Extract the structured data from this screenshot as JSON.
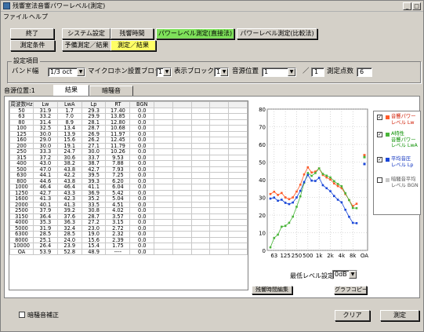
{
  "window": {
    "title": "残響室法音響パワーレベル(測定)",
    "controls": [
      "_",
      "□"
    ]
  },
  "menu": [
    "ファイル",
    "ヘルプ"
  ],
  "toolbar": {
    "row1": [
      "終了",
      "システム設定",
      "残響時間",
      "パワーレベル測定(直接法)",
      "パワーレベル測定(比較法)"
    ],
    "row2": [
      "測定条件",
      "予備測定／結果",
      "測定／結果"
    ]
  },
  "settings": {
    "group_label": "設定項目",
    "band_label": "バンド幅",
    "band_value": "1/3 oct",
    "mic_block_label": "マイクロホン設置ブロック",
    "mic_block_value": "1",
    "display_block_label": "表示ブロック",
    "display_block_value": "1",
    "sound_pos_label": "音源位置",
    "sound_pos_value": "1",
    "sound_pos_total": "1",
    "points_label": "測定点数",
    "points_value": "6"
  },
  "position_label": "音源位置:1",
  "tabs": [
    "結果",
    "暗騒音"
  ],
  "table": {
    "columns": [
      "周波数Hz",
      "Lw",
      "LwA",
      "Lp",
      "RT",
      "BGN"
    ],
    "rows": [
      [
        "50",
        "31.9",
        "1.7",
        "29.3",
        "17.40",
        "0.0"
      ],
      [
        "63",
        "33.2",
        "7.0",
        "29.9",
        "13.85",
        "0.0"
      ],
      [
        "80",
        "31.4",
        "8.9",
        "28.1",
        "12.80",
        "0.0"
      ],
      [
        "100",
        "32.5",
        "13.4",
        "28.7",
        "10.68",
        "0.0"
      ],
      [
        "125",
        "30.0",
        "13.9",
        "26.9",
        "11.97",
        "0.0"
      ],
      [
        "160",
        "29.0",
        "15.6",
        "26.2",
        "12.45",
        "0.0"
      ],
      [
        "200",
        "30.0",
        "19.1",
        "27.1",
        "11.79",
        "0.0"
      ],
      [
        "250",
        "33.3",
        "24.7",
        "30.0",
        "10.26",
        "0.0"
      ],
      [
        "315",
        "37.2",
        "30.6",
        "33.7",
        "9.53",
        "0.0"
      ],
      [
        "400",
        "43.0",
        "38.2",
        "38.7",
        "7.88",
        "0.0"
      ],
      [
        "500",
        "47.0",
        "43.8",
        "42.7",
        "7.93",
        "0.0"
      ],
      [
        "630",
        "44.1",
        "42.2",
        "39.5",
        "7.25",
        "0.0"
      ],
      [
        "800",
        "44.6",
        "43.8",
        "39.3",
        "6.20",
        "0.0"
      ],
      [
        "1000",
        "46.4",
        "46.4",
        "41.1",
        "6.04",
        "0.0"
      ],
      [
        "1250",
        "42.7",
        "43.3",
        "36.9",
        "5.42",
        "0.0"
      ],
      [
        "1600",
        "41.3",
        "42.3",
        "35.2",
        "5.04",
        "0.0"
      ],
      [
        "2000",
        "40.1",
        "41.3",
        "33.5",
        "4.51",
        "0.0"
      ],
      [
        "2500",
        "37.9",
        "39.2",
        "30.8",
        "4.02",
        "0.0"
      ],
      [
        "3150",
        "36.4",
        "37.6",
        "28.7",
        "3.57",
        "0.0"
      ],
      [
        "4000",
        "35.3",
        "36.3",
        "27.2",
        "3.15",
        "0.0"
      ],
      [
        "5000",
        "31.9",
        "32.4",
        "23.0",
        "2.72",
        "0.0"
      ],
      [
        "6300",
        "28.5",
        "28.5",
        "19.0",
        "2.32",
        "0.0"
      ],
      [
        "8000",
        "25.1",
        "24.0",
        "15.6",
        "2.39",
        "0.0"
      ],
      [
        "10000",
        "26.4",
        "23.9",
        "15.4",
        "1.75",
        "0.0"
      ],
      [
        "OA",
        "53.9",
        "52.8",
        "48.9",
        "----",
        "0.0"
      ]
    ]
  },
  "chart_data": {
    "type": "line",
    "x": [
      "50",
      "63",
      "80",
      "100",
      "125",
      "160",
      "200",
      "250",
      "315",
      "400",
      "500",
      "630",
      "800",
      "1000",
      "1250",
      "1600",
      "2000",
      "2500",
      "3150",
      "4000",
      "5000",
      "6300",
      "8000",
      "10000"
    ],
    "x_tick_labels": [
      "63",
      "125",
      "250",
      "500",
      "1k",
      "2k",
      "4k",
      "8k",
      "OA"
    ],
    "ylim": [
      0,
      80
    ],
    "y_ticks": [
      0,
      10,
      20,
      30,
      40,
      50,
      60,
      70,
      80
    ],
    "grid": true,
    "series": [
      {
        "name": "音響パワーレベル Lw",
        "color": "#ff5a28",
        "values": [
          31.9,
          33.2,
          31.4,
          32.5,
          30.0,
          29.0,
          30.0,
          33.3,
          37.2,
          43.0,
          47.0,
          44.1,
          44.6,
          46.4,
          42.7,
          41.3,
          40.1,
          37.9,
          36.4,
          35.3,
          31.9,
          28.5,
          25.1,
          26.4
        ],
        "oa": 53.9
      },
      {
        "name": "A特性 音響パワーレベル LwA",
        "color": "#4ab53a",
        "values": [
          1.7,
          7.0,
          8.9,
          13.4,
          13.9,
          15.6,
          19.1,
          24.7,
          30.6,
          38.2,
          43.8,
          42.2,
          43.8,
          46.4,
          43.3,
          42.3,
          41.3,
          39.2,
          37.6,
          36.3,
          32.4,
          28.5,
          24.0,
          23.9
        ],
        "oa": 52.8
      },
      {
        "name": "平均音圧レベル Lp",
        "color": "#1a47d8",
        "values": [
          29.3,
          29.9,
          28.1,
          28.7,
          26.9,
          26.2,
          27.1,
          30.0,
          33.7,
          38.7,
          42.7,
          39.5,
          39.3,
          41.1,
          36.9,
          35.2,
          33.5,
          30.8,
          28.7,
          27.2,
          23.0,
          19.0,
          15.6,
          15.4
        ],
        "oa": 48.9
      }
    ]
  },
  "legend": [
    {
      "checked": true,
      "color": "#ff5a28",
      "lines": [
        "音響パワー",
        "レベル Lw"
      ],
      "tone": "red"
    },
    {
      "checked": true,
      "color": "#4ab53a",
      "lines": [
        "A特性",
        "音響パワー",
        "レベル LwA"
      ],
      "tone": "green"
    },
    {
      "checked": true,
      "color": "#1a47d8",
      "lines": [
        "平均音圧",
        "レベル Lp"
      ],
      "tone": "blue"
    },
    {
      "checked": false,
      "color": "#c8c8c8",
      "lines": [
        "暗騒音平均",
        "レベル BGN"
      ],
      "tone": "gray"
    }
  ],
  "min_level": {
    "label": "最低レベル設定",
    "value": "0dB"
  },
  "buttons": {
    "rt_edit": "残響時間編集",
    "graph_copy": "グラフコピー",
    "clear": "クリア",
    "measure": "測定"
  },
  "bg_noise_correction": "暗騒音補正"
}
